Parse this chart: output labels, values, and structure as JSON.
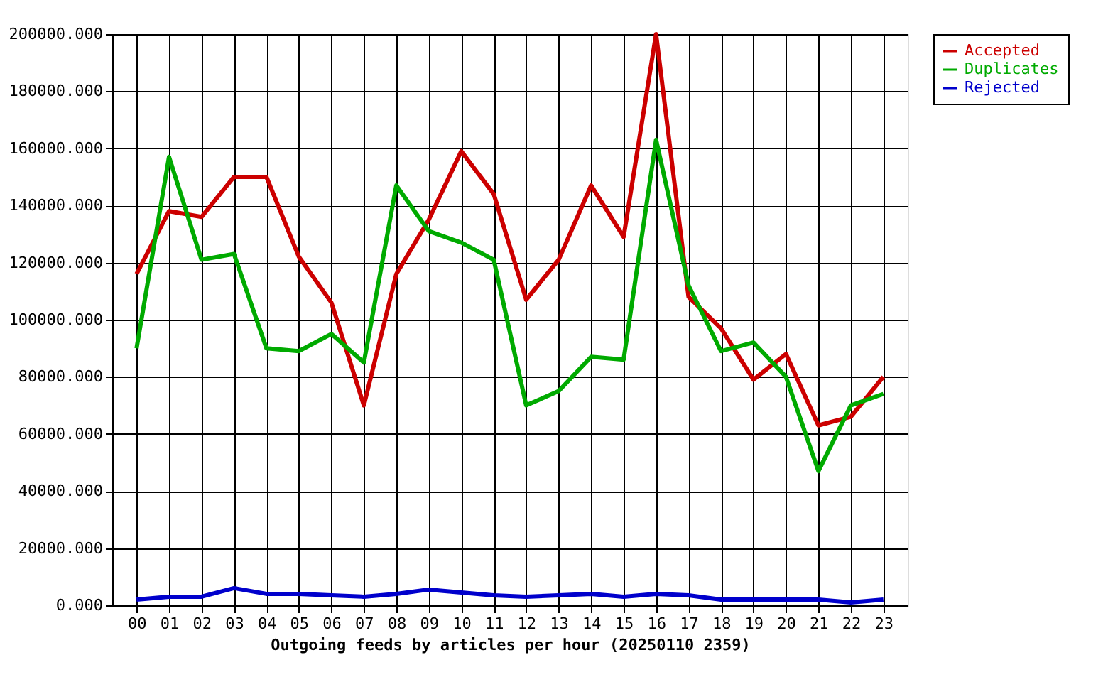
{
  "chart_data": {
    "type": "line",
    "xlabel": "Outgoing feeds by articles per hour (20250110 2359)",
    "categories": [
      "00",
      "01",
      "02",
      "03",
      "04",
      "05",
      "06",
      "07",
      "08",
      "09",
      "10",
      "11",
      "12",
      "13",
      "14",
      "15",
      "16",
      "17",
      "18",
      "19",
      "20",
      "21",
      "22",
      "23"
    ],
    "series": [
      {
        "name": "Accepted",
        "color": "#cc0000",
        "values": [
          116000,
          138000,
          136000,
          150000,
          150000,
          122000,
          106000,
          70000,
          116000,
          135000,
          159000,
          144000,
          107000,
          121000,
          147000,
          129000,
          200000,
          108000,
          97000,
          79000,
          88000,
          63000,
          66000,
          80000
        ]
      },
      {
        "name": "Duplicates",
        "color": "#00aa00",
        "values": [
          90000,
          157000,
          121000,
          123000,
          90000,
          89000,
          95000,
          85000,
          147000,
          131000,
          127000,
          121000,
          70000,
          75000,
          87000,
          86000,
          163000,
          112000,
          89000,
          92000,
          80000,
          47000,
          70000,
          74000
        ]
      },
      {
        "name": "Rejected",
        "color": "#0000cc",
        "values": [
          2000,
          3000,
          3000,
          6000,
          4000,
          4000,
          3500,
          3000,
          4000,
          5500,
          4500,
          3500,
          3000,
          3500,
          4000,
          3000,
          4000,
          3500,
          2000,
          2000,
          2000,
          2000,
          1000,
          2000
        ]
      }
    ],
    "ylim": [
      0,
      200000
    ],
    "yticks": [
      {
        "value": 0,
        "label": "0.000"
      },
      {
        "value": 20000,
        "label": "20000.000"
      },
      {
        "value": 40000,
        "label": "40000.000"
      },
      {
        "value": 60000,
        "label": "60000.000"
      },
      {
        "value": 80000,
        "label": "80000.000"
      },
      {
        "value": 100000,
        "label": "100000.000"
      },
      {
        "value": 120000,
        "label": "120000.000"
      },
      {
        "value": 140000,
        "label": "140000.000"
      },
      {
        "value": 160000,
        "label": "160000.000"
      },
      {
        "value": 180000,
        "label": "180000.000"
      },
      {
        "value": 200000,
        "label": "200000.000"
      }
    ],
    "grid": true,
    "legend": "top right",
    "marker": "none",
    "line_style": "solid"
  }
}
